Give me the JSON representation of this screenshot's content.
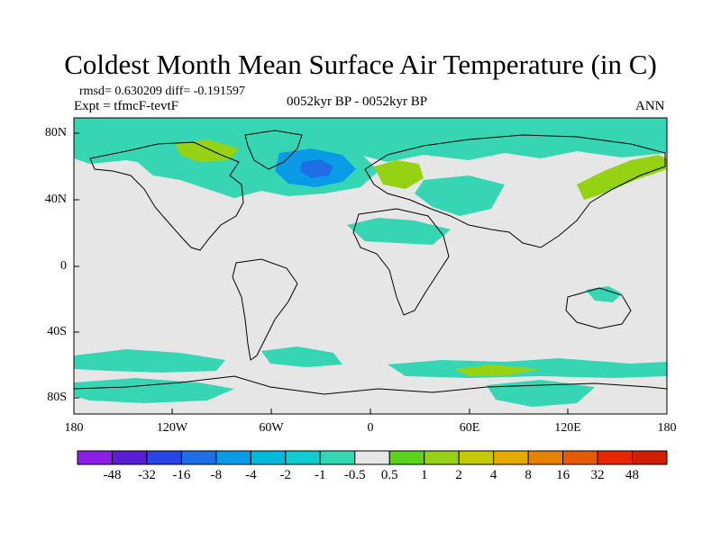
{
  "title": "Coldest Month Mean Surface Air Temperature (in C)",
  "stats": "rmsd= 0.630209 diff= -0.191597",
  "experiment": "Expt = tfmcF-tevtF",
  "period": "0052kyr BP - 0052kyr BP",
  "season": "ANN",
  "lat_labels": [
    "80N",
    "40N",
    "0",
    "40S",
    "80S"
  ],
  "lon_labels": [
    "180",
    "120W",
    "60W",
    "0",
    "60E",
    "120E",
    "180"
  ],
  "colorbar": {
    "labels": [
      "-48",
      "-32",
      "-16",
      "-8",
      "-4",
      "-2",
      "-1",
      "-0.5",
      "0.5",
      "1",
      "2",
      "4",
      "8",
      "16",
      "32",
      "48"
    ],
    "colors": [
      "#8c1ee6",
      "#5a1ed2",
      "#2846e6",
      "#1e6ee6",
      "#0a9be6",
      "#00b9dc",
      "#10ccd0",
      "#36d6b4",
      "#e6e6e6",
      "#5ad21e",
      "#96d214",
      "#c8c80a",
      "#e6aa00",
      "#e68200",
      "#e65a00",
      "#e62800",
      "#d21e00"
    ]
  },
  "colors": {
    "background": "#e6e6e6",
    "cool_anomaly": "#36d6b4",
    "cold_anomaly": "#0a9be6",
    "strong_cold_anomaly": "#1e6ee6",
    "warm_anomaly": "#96d214",
    "coastline": "#000000"
  }
}
